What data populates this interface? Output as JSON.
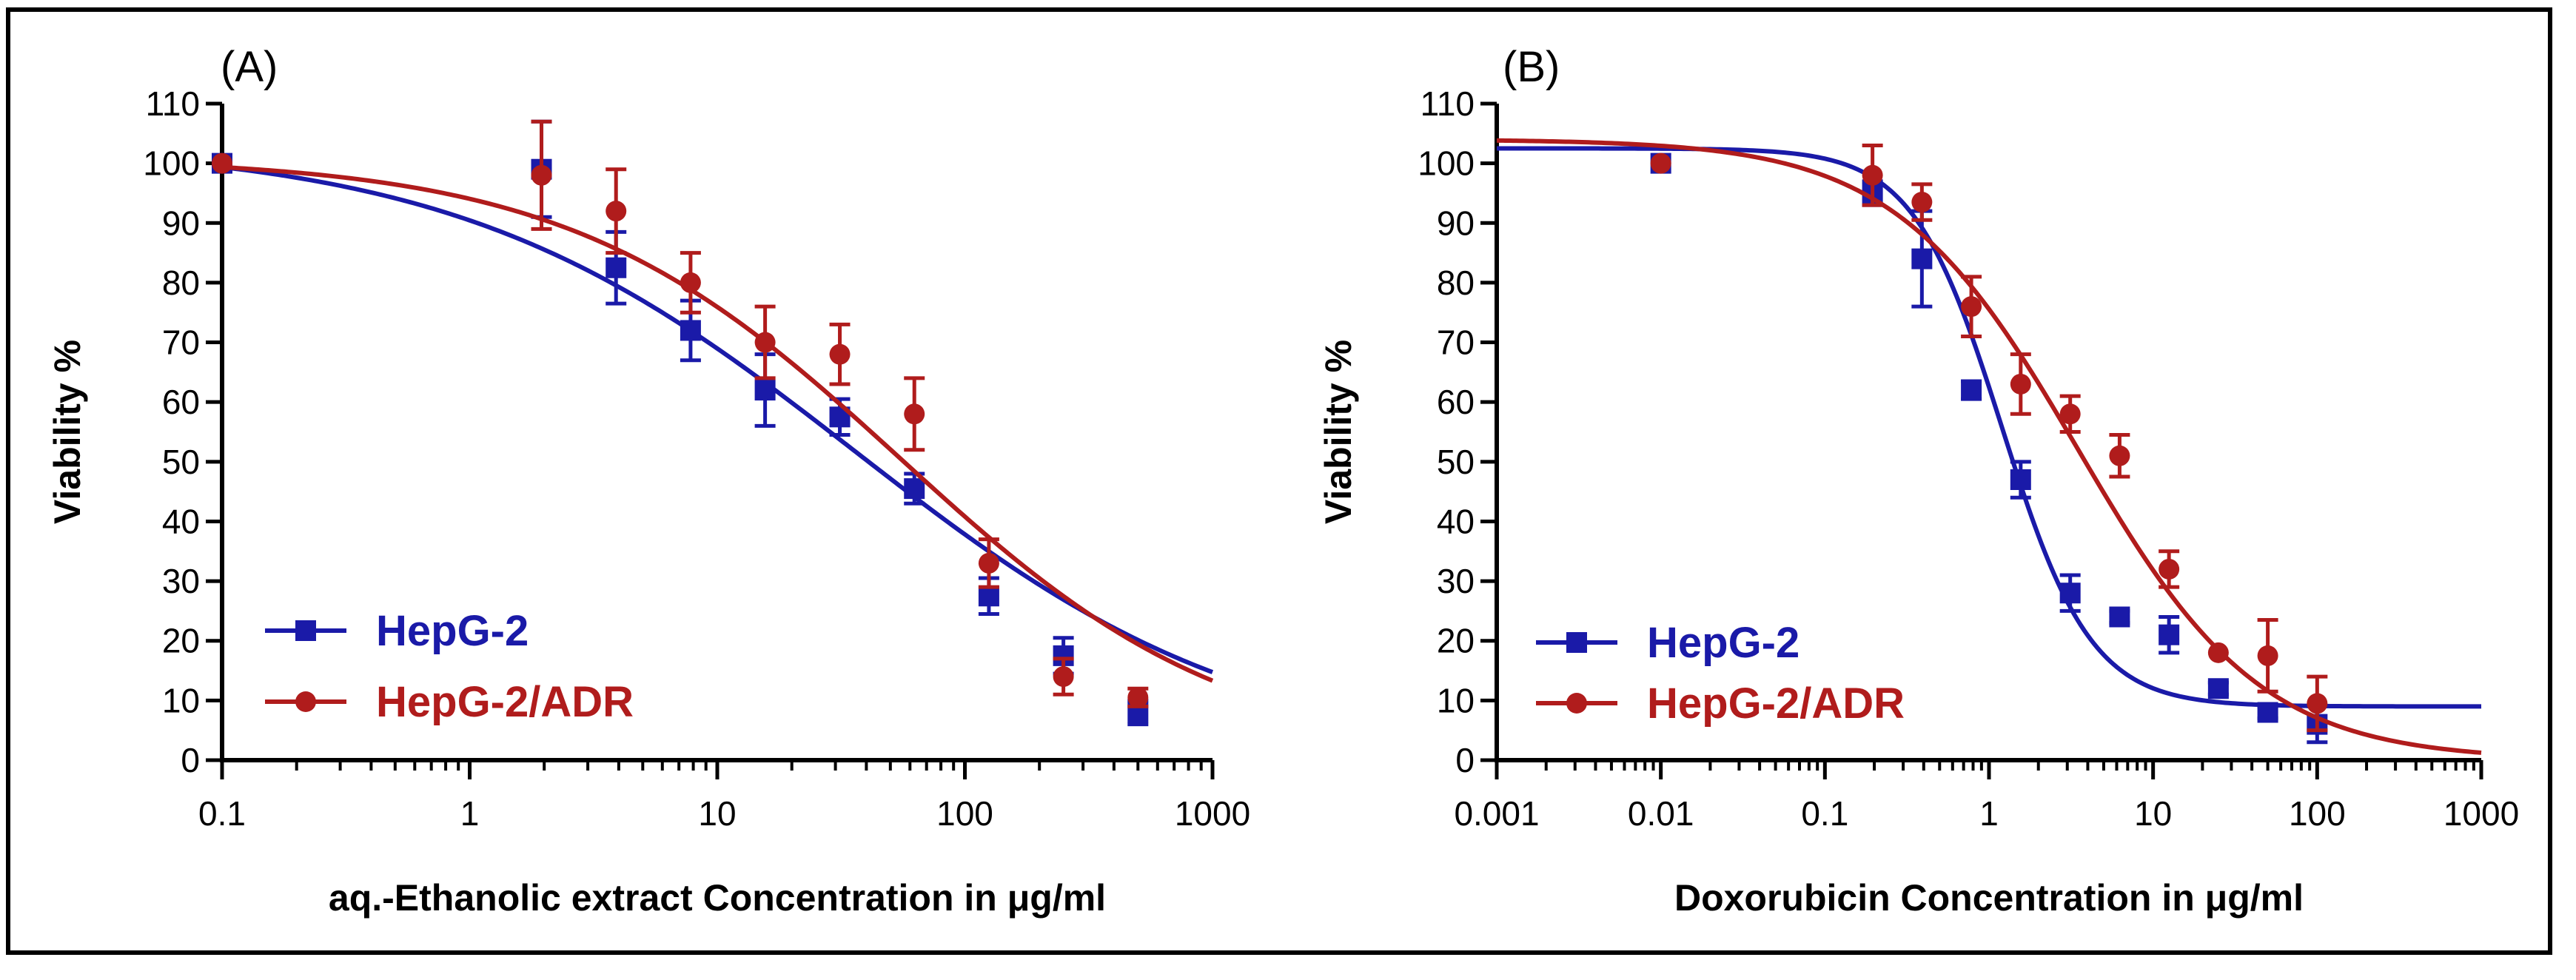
{
  "colors": {
    "hepg2": "#1a1aa8",
    "adr": "#b01c1c",
    "axis": "#000000"
  },
  "chart_data": [
    {
      "type": "scatter",
      "panel_label": "(A)",
      "xlabel": "aq.-Ethanolic extract Concentration in μg/ml",
      "ylabel": "Viability %",
      "x_scale": "log",
      "xlim": [
        0.1,
        1000
      ],
      "ylim": [
        0,
        110
      ],
      "x_ticks": [
        {
          "value": 0.1,
          "label": "0.1"
        },
        {
          "value": 1,
          "label": "1"
        },
        {
          "value": 10,
          "label": "10"
        },
        {
          "value": 100,
          "label": "100"
        },
        {
          "value": 1000,
          "label": "1000"
        }
      ],
      "y_ticks": [
        {
          "value": 0,
          "label": "0"
        },
        {
          "value": 10,
          "label": "10"
        },
        {
          "value": 20,
          "label": "20"
        },
        {
          "value": 30,
          "label": "30"
        },
        {
          "value": 40,
          "label": "40"
        },
        {
          "value": 50,
          "label": "50"
        },
        {
          "value": 60,
          "label": "60"
        },
        {
          "value": 70,
          "label": "70"
        },
        {
          "value": 80,
          "label": "80"
        },
        {
          "value": 90,
          "label": "90"
        },
        {
          "value": 100,
          "label": "100"
        },
        {
          "value": 110,
          "label": "110"
        }
      ],
      "legend_position": "bottom-left",
      "series": [
        {
          "name": "HepG-2",
          "marker": "square",
          "color_key": "hepg2",
          "points": [
            {
              "x": 0.1,
              "y": 100,
              "err": 0
            },
            {
              "x": 1.95,
              "y": 99,
              "err": 8
            },
            {
              "x": 3.9,
              "y": 82.5,
              "err": 6
            },
            {
              "x": 7.8,
              "y": 72,
              "err": 5
            },
            {
              "x": 15.6,
              "y": 62,
              "err": 6
            },
            {
              "x": 31.25,
              "y": 57.5,
              "err": 3
            },
            {
              "x": 62.5,
              "y": 45.5,
              "err": 2.5
            },
            {
              "x": 125,
              "y": 27.5,
              "err": 3
            },
            {
              "x": 250,
              "y": 17.5,
              "err": 3
            },
            {
              "x": 500,
              "y": 8,
              "err": 2
            }
          ],
          "fit": {
            "top": 103.5,
            "bottom": 0,
            "ec50": 36,
            "hill": 0.54
          }
        },
        {
          "name": "HepG-2/ADR",
          "marker": "circle",
          "color_key": "adr",
          "points": [
            {
              "x": 0.1,
              "y": 100,
              "err": 0
            },
            {
              "x": 1.95,
              "y": 98,
              "err": 9
            },
            {
              "x": 3.9,
              "y": 92,
              "err": 7
            },
            {
              "x": 7.8,
              "y": 80,
              "err": 5
            },
            {
              "x": 15.6,
              "y": 70,
              "err": 6
            },
            {
              "x": 31.25,
              "y": 68,
              "err": 5
            },
            {
              "x": 62.5,
              "y": 58,
              "err": 6
            },
            {
              "x": 125,
              "y": 33,
              "err": 4
            },
            {
              "x": 250,
              "y": 14,
              "err": 3
            },
            {
              "x": 500,
              "y": 10.5,
              "err": 1.5
            }
          ],
          "fit": {
            "top": 101,
            "bottom": 0,
            "ec50": 55,
            "hill": 0.65
          }
        }
      ]
    },
    {
      "type": "scatter",
      "panel_label": "(B)",
      "xlabel": "Doxorubicin Concentration in μg/ml",
      "ylabel": "Viability %",
      "x_scale": "log",
      "xlim": [
        0.001,
        1000
      ],
      "ylim": [
        0,
        110
      ],
      "x_ticks": [
        {
          "value": 0.001,
          "label": "0.001"
        },
        {
          "value": 0.01,
          "label": "0.01"
        },
        {
          "value": 0.1,
          "label": "0.1"
        },
        {
          "value": 1,
          "label": "1"
        },
        {
          "value": 10,
          "label": "10"
        },
        {
          "value": 100,
          "label": "100"
        },
        {
          "value": 1000,
          "label": "1000"
        }
      ],
      "y_ticks": [
        {
          "value": 0,
          "label": "0"
        },
        {
          "value": 10,
          "label": "10"
        },
        {
          "value": 20,
          "label": "20"
        },
        {
          "value": 30,
          "label": "30"
        },
        {
          "value": 40,
          "label": "40"
        },
        {
          "value": 50,
          "label": "50"
        },
        {
          "value": 60,
          "label": "60"
        },
        {
          "value": 70,
          "label": "70"
        },
        {
          "value": 80,
          "label": "80"
        },
        {
          "value": 90,
          "label": "90"
        },
        {
          "value": 100,
          "label": "100"
        },
        {
          "value": 110,
          "label": "110"
        }
      ],
      "legend_position": "bottom-left",
      "series": [
        {
          "name": "HepG-2",
          "marker": "square",
          "color_key": "hepg2",
          "points": [
            {
              "x": 0.01,
              "y": 100,
              "err": 0
            },
            {
              "x": 0.195,
              "y": 95,
              "err": 2
            },
            {
              "x": 0.39,
              "y": 84,
              "err": 8
            },
            {
              "x": 0.78,
              "y": 62,
              "err": 1.5
            },
            {
              "x": 1.56,
              "y": 47,
              "err": 3
            },
            {
              "x": 3.125,
              "y": 28,
              "err": 3
            },
            {
              "x": 6.25,
              "y": 24,
              "err": 1
            },
            {
              "x": 12.5,
              "y": 21,
              "err": 3
            },
            {
              "x": 25,
              "y": 12,
              "err": 1
            },
            {
              "x": 50,
              "y": 8,
              "err": 1
            },
            {
              "x": 100,
              "y": 6,
              "err": 3
            }
          ],
          "fit": {
            "top": 102.5,
            "bottom": 9,
            "ec50": 1.2,
            "hill": 1.6
          }
        },
        {
          "name": "HepG-2/ADR",
          "marker": "circle",
          "color_key": "adr",
          "points": [
            {
              "x": 0.01,
              "y": 100,
              "err": 0
            },
            {
              "x": 0.195,
              "y": 98,
              "err": 5
            },
            {
              "x": 0.39,
              "y": 93.5,
              "err": 3
            },
            {
              "x": 0.78,
              "y": 76,
              "err": 5
            },
            {
              "x": 1.56,
              "y": 63,
              "err": 5
            },
            {
              "x": 3.125,
              "y": 58,
              "err": 3
            },
            {
              "x": 6.25,
              "y": 51,
              "err": 3.5
            },
            {
              "x": 12.5,
              "y": 32,
              "err": 3
            },
            {
              "x": 25,
              "y": 18,
              "err": 0
            },
            {
              "x": 50,
              "y": 17.5,
              "err": 6
            },
            {
              "x": 100,
              "y": 9.5,
              "err": 4.5
            }
          ],
          "fit": {
            "top": 104,
            "bottom": 0,
            "ec50": 3.5,
            "hill": 0.78
          }
        }
      ]
    }
  ]
}
